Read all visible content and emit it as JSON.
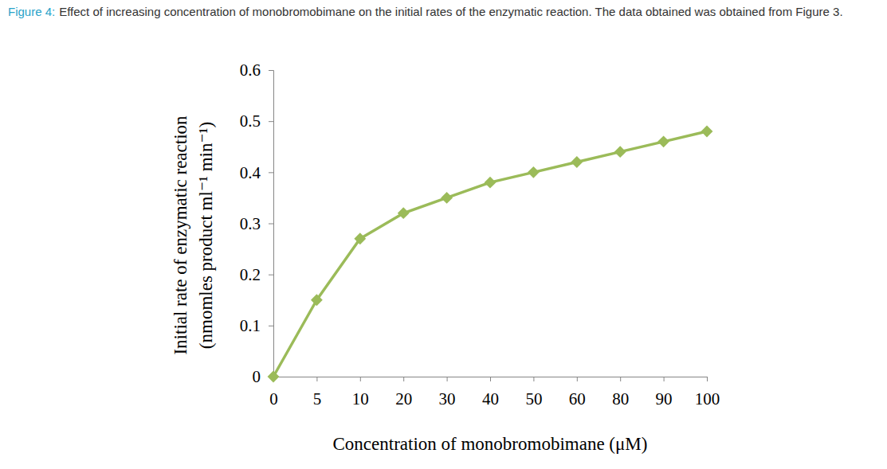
{
  "chart_data": {
    "type": "line",
    "title": "Figure 4:",
    "subtitle": "Effect of increasing concentration of monobromobimane on the initial rates of the enzymatic reaction. The data obtained was obtained from Figure 3.",
    "x_label": "Concentration of monobromobimane (μM)",
    "y_label": "Initial rate of enzymatic reaction (nmomles product ml⁻¹ min⁻¹)",
    "categories": [
      "0",
      "5",
      "10",
      "20",
      "30",
      "40",
      "50",
      "60",
      "80",
      "90",
      "100"
    ],
    "values": [
      0,
      0.15,
      0.27,
      0.32,
      0.35,
      0.38,
      0.4,
      0.42,
      0.44,
      0.46,
      0.48
    ],
    "color": "#9bbb59",
    "marker": "diamond",
    "ylim": [
      0,
      0.6
    ],
    "yticks": [
      0,
      0.1,
      0.2,
      0.3,
      0.4,
      0.5,
      0.6
    ],
    "grid": false
  }
}
